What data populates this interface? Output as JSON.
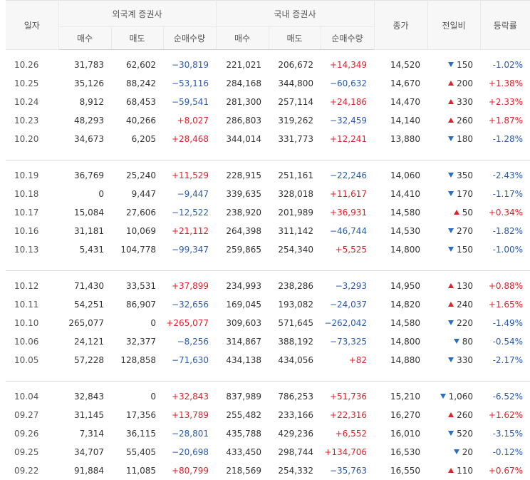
{
  "headers": {
    "date": "일자",
    "foreign": "외국계 증권사",
    "domestic": "국내 증권사",
    "close": "종가",
    "change": "전일비",
    "rate": "등락률",
    "buy": "매수",
    "sell": "매도",
    "net": "순매수량"
  },
  "groups": [
    [
      {
        "date": "10.26",
        "f_buy": "31,783",
        "f_sell": "62,602",
        "f_net": "−30,819",
        "f_dir": "down",
        "d_buy": "221,021",
        "d_sell": "206,672",
        "d_net": "+14,349",
        "d_dir": "up",
        "close": "14,520",
        "chg": "150",
        "chg_dir": "down",
        "rate": "-1.02%",
        "rate_dir": "down"
      },
      {
        "date": "10.25",
        "f_buy": "35,126",
        "f_sell": "88,242",
        "f_net": "−53,116",
        "f_dir": "down",
        "d_buy": "284,168",
        "d_sell": "344,800",
        "d_net": "−60,632",
        "d_dir": "down",
        "close": "14,670",
        "chg": "200",
        "chg_dir": "up",
        "rate": "+1.38%",
        "rate_dir": "up"
      },
      {
        "date": "10.24",
        "f_buy": "8,912",
        "f_sell": "68,453",
        "f_net": "−59,541",
        "f_dir": "down",
        "d_buy": "281,300",
        "d_sell": "257,114",
        "d_net": "+24,186",
        "d_dir": "up",
        "close": "14,470",
        "chg": "330",
        "chg_dir": "up",
        "rate": "+2.33%",
        "rate_dir": "up"
      },
      {
        "date": "10.23",
        "f_buy": "48,293",
        "f_sell": "40,266",
        "f_net": "+8,027",
        "f_dir": "up",
        "d_buy": "286,803",
        "d_sell": "319,262",
        "d_net": "−32,459",
        "d_dir": "down",
        "close": "14,140",
        "chg": "260",
        "chg_dir": "up",
        "rate": "+1.87%",
        "rate_dir": "up"
      },
      {
        "date": "10.20",
        "f_buy": "34,673",
        "f_sell": "6,205",
        "f_net": "+28,468",
        "f_dir": "up",
        "d_buy": "344,014",
        "d_sell": "331,773",
        "d_net": "+12,241",
        "d_dir": "up",
        "close": "13,880",
        "chg": "180",
        "chg_dir": "down",
        "rate": "-1.28%",
        "rate_dir": "down"
      }
    ],
    [
      {
        "date": "10.19",
        "f_buy": "36,769",
        "f_sell": "25,240",
        "f_net": "+11,529",
        "f_dir": "up",
        "d_buy": "228,915",
        "d_sell": "251,161",
        "d_net": "−22,246",
        "d_dir": "down",
        "close": "14,060",
        "chg": "350",
        "chg_dir": "down",
        "rate": "-2.43%",
        "rate_dir": "down"
      },
      {
        "date": "10.18",
        "f_buy": "0",
        "f_sell": "9,447",
        "f_net": "−9,447",
        "f_dir": "down",
        "d_buy": "339,635",
        "d_sell": "328,018",
        "d_net": "+11,617",
        "d_dir": "up",
        "close": "14,410",
        "chg": "170",
        "chg_dir": "down",
        "rate": "-1.17%",
        "rate_dir": "down"
      },
      {
        "date": "10.17",
        "f_buy": "15,084",
        "f_sell": "27,606",
        "f_net": "−12,522",
        "f_dir": "down",
        "d_buy": "238,920",
        "d_sell": "201,989",
        "d_net": "+36,931",
        "d_dir": "up",
        "close": "14,580",
        "chg": "50",
        "chg_dir": "up",
        "rate": "+0.34%",
        "rate_dir": "up"
      },
      {
        "date": "10.16",
        "f_buy": "31,181",
        "f_sell": "10,069",
        "f_net": "+21,112",
        "f_dir": "up",
        "d_buy": "264,398",
        "d_sell": "311,142",
        "d_net": "−46,744",
        "d_dir": "down",
        "close": "14,530",
        "chg": "270",
        "chg_dir": "down",
        "rate": "-1.82%",
        "rate_dir": "down"
      },
      {
        "date": "10.13",
        "f_buy": "5,431",
        "f_sell": "104,778",
        "f_net": "−99,347",
        "f_dir": "down",
        "d_buy": "259,865",
        "d_sell": "254,340",
        "d_net": "+5,525",
        "d_dir": "up",
        "close": "14,800",
        "chg": "150",
        "chg_dir": "down",
        "rate": "-1.00%",
        "rate_dir": "down"
      }
    ],
    [
      {
        "date": "10.12",
        "f_buy": "71,430",
        "f_sell": "33,531",
        "f_net": "+37,899",
        "f_dir": "up",
        "d_buy": "234,993",
        "d_sell": "238,286",
        "d_net": "−3,293",
        "d_dir": "down",
        "close": "14,950",
        "chg": "130",
        "chg_dir": "up",
        "rate": "+0.88%",
        "rate_dir": "up"
      },
      {
        "date": "10.11",
        "f_buy": "54,251",
        "f_sell": "86,907",
        "f_net": "−32,656",
        "f_dir": "down",
        "d_buy": "169,045",
        "d_sell": "193,082",
        "d_net": "−24,037",
        "d_dir": "down",
        "close": "14,820",
        "chg": "240",
        "chg_dir": "up",
        "rate": "+1.65%",
        "rate_dir": "up"
      },
      {
        "date": "10.10",
        "f_buy": "265,077",
        "f_sell": "0",
        "f_net": "+265,077",
        "f_dir": "up",
        "d_buy": "309,603",
        "d_sell": "571,645",
        "d_net": "−262,042",
        "d_dir": "down",
        "close": "14,580",
        "chg": "220",
        "chg_dir": "down",
        "rate": "-1.49%",
        "rate_dir": "down"
      },
      {
        "date": "10.06",
        "f_buy": "24,121",
        "f_sell": "32,377",
        "f_net": "−8,256",
        "f_dir": "down",
        "d_buy": "314,867",
        "d_sell": "388,192",
        "d_net": "−73,325",
        "d_dir": "down",
        "close": "14,800",
        "chg": "80",
        "chg_dir": "down",
        "rate": "-0.54%",
        "rate_dir": "down"
      },
      {
        "date": "10.05",
        "f_buy": "57,228",
        "f_sell": "128,858",
        "f_net": "−71,630",
        "f_dir": "down",
        "d_buy": "434,138",
        "d_sell": "434,056",
        "d_net": "+82",
        "d_dir": "up",
        "close": "14,880",
        "chg": "330",
        "chg_dir": "down",
        "rate": "-2.17%",
        "rate_dir": "down"
      }
    ],
    [
      {
        "date": "10.04",
        "f_buy": "32,843",
        "f_sell": "0",
        "f_net": "+32,843",
        "f_dir": "up",
        "d_buy": "837,989",
        "d_sell": "786,253",
        "d_net": "+51,736",
        "d_dir": "up",
        "close": "15,210",
        "chg": "1,060",
        "chg_dir": "down",
        "rate": "-6.52%",
        "rate_dir": "down"
      },
      {
        "date": "09.27",
        "f_buy": "31,145",
        "f_sell": "17,356",
        "f_net": "+13,789",
        "f_dir": "up",
        "d_buy": "255,482",
        "d_sell": "233,166",
        "d_net": "+22,316",
        "d_dir": "up",
        "close": "16,270",
        "chg": "260",
        "chg_dir": "up",
        "rate": "+1.62%",
        "rate_dir": "up"
      },
      {
        "date": "09.26",
        "f_buy": "7,314",
        "f_sell": "36,115",
        "f_net": "−28,801",
        "f_dir": "down",
        "d_buy": "435,788",
        "d_sell": "429,236",
        "d_net": "+6,552",
        "d_dir": "up",
        "close": "16,010",
        "chg": "520",
        "chg_dir": "down",
        "rate": "-3.15%",
        "rate_dir": "down"
      },
      {
        "date": "09.25",
        "f_buy": "34,707",
        "f_sell": "55,405",
        "f_net": "−20,698",
        "f_dir": "down",
        "d_buy": "433,450",
        "d_sell": "298,744",
        "d_net": "+134,706",
        "d_dir": "up",
        "close": "16,530",
        "chg": "20",
        "chg_dir": "down",
        "rate": "-0.12%",
        "rate_dir": "down"
      },
      {
        "date": "09.22",
        "f_buy": "91,884",
        "f_sell": "11,085",
        "f_net": "+80,799",
        "f_dir": "up",
        "d_buy": "218,569",
        "d_sell": "254,332",
        "d_net": "−35,763",
        "d_dir": "down",
        "close": "16,550",
        "chg": "110",
        "chg_dir": "up",
        "rate": "+0.67%",
        "rate_dir": "up"
      }
    ]
  ],
  "colors": {
    "up": "#e0202a",
    "down": "#2a5aaa"
  }
}
